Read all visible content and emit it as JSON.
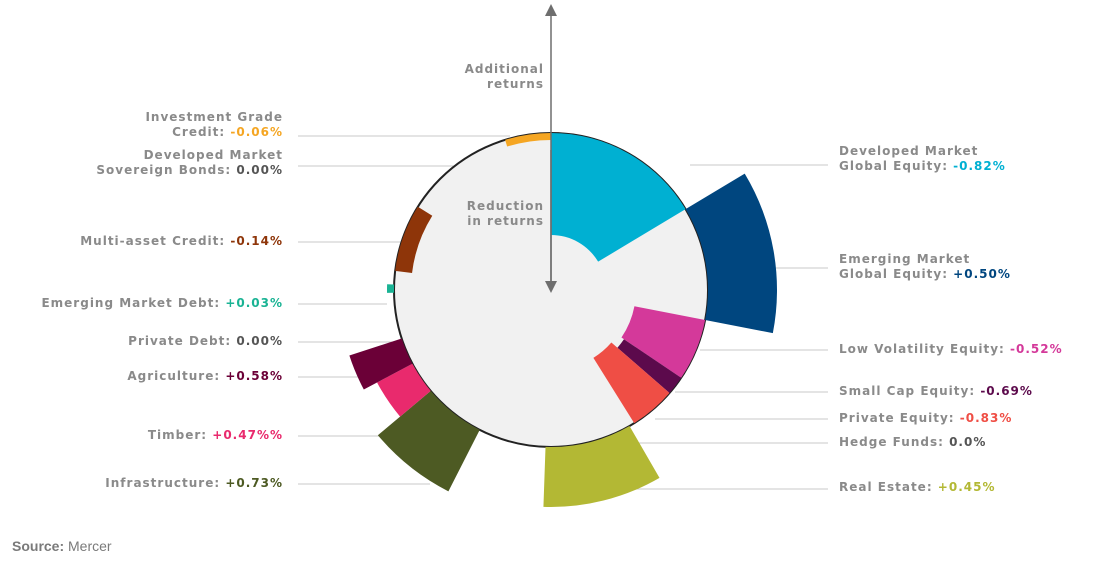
{
  "chart_data": {
    "type": "polar-area",
    "axis_up_label": [
      "Additional",
      "returns"
    ],
    "axis_down_label": [
      "Reduction",
      "in returns"
    ],
    "series": [
      {
        "name": "Developed Market Global Equity",
        "label_lines": [
          "Developed Market",
          "Global Equity: "
        ],
        "value_text": "-0.82%",
        "value": -0.82,
        "color": "#00b0d2",
        "side": "right"
      },
      {
        "name": "Emerging Market Global Equity",
        "label_lines": [
          "Emerging Market",
          "Global Equity: "
        ],
        "value_text": "+0.50%",
        "value": 0.5,
        "color": "#00467f",
        "side": "right"
      },
      {
        "name": "Low Volatility Equity",
        "label_lines": [
          "Low Volatility Equity: "
        ],
        "value_text": "-0.52%",
        "value": -0.52,
        "color": "#d4399a",
        "side": "right"
      },
      {
        "name": "Small Cap Equity",
        "label_lines": [
          "Small Cap Equity: "
        ],
        "value_text": "-0.69%",
        "value": -0.69,
        "color": "#5c0a4c",
        "side": "right"
      },
      {
        "name": "Private Equity",
        "label_lines": [
          "Private Equity: "
        ],
        "value_text": "-0.83%",
        "value": -0.83,
        "color": "#ef4e45",
        "side": "right"
      },
      {
        "name": "Hedge Funds",
        "label_lines": [
          "Hedge Funds:  "
        ],
        "value_text": "0.0%",
        "value": 0.0,
        "color": "#555555",
        "side": "right"
      },
      {
        "name": "Real Estate",
        "label_lines": [
          "Real Estate: "
        ],
        "value_text": "+0.45%",
        "value": 0.45,
        "color": "#b3b834",
        "side": "right"
      },
      {
        "name": "Infrastructure",
        "label_lines": [
          "Infrastructure: "
        ],
        "value_text": "+0.73%",
        "value": 0.73,
        "color": "#4d5a23",
        "side": "left"
      },
      {
        "name": "Timber",
        "label_lines": [
          "Timber: "
        ],
        "value_text": "+0.47%%",
        "value": 0.47,
        "color": "#e92a6d",
        "side": "left"
      },
      {
        "name": "Agriculture",
        "label_lines": [
          "Agriculture: "
        ],
        "value_text": "+0.58%",
        "value": 0.58,
        "color": "#6b0037",
        "side": "left"
      },
      {
        "name": "Private Debt",
        "label_lines": [
          "Private Debt: "
        ],
        "value_text": "0.00%",
        "value": 0.0,
        "color": "#555555",
        "side": "left"
      },
      {
        "name": "Emerging Market Debt",
        "label_lines": [
          "Emerging Market Debt: "
        ],
        "value_text": "+0.03%",
        "value": 0.03,
        "color": "#1ab394",
        "side": "left"
      },
      {
        "name": "Multi-asset Credit",
        "label_lines": [
          "Multi-asset Credit: "
        ],
        "value_text": "-0.14%",
        "value": -0.14,
        "color": "#8e3509",
        "side": "left"
      },
      {
        "name": "Developed Market Sovereign Bonds",
        "label_lines": [
          "Developed Market",
          "Sovereign Bonds: "
        ],
        "value_text": "0.00%",
        "value": 0.0,
        "color": "#555555",
        "side": "left"
      },
      {
        "name": "Investment Grade Credit",
        "label_lines": [
          "Investment Grade",
          "Credit: "
        ],
        "value_text": "-0.06%",
        "value": -0.06,
        "color": "#f5a623",
        "side": "left"
      }
    ]
  },
  "source": {
    "prefix": "Source:",
    "text": " Mercer"
  }
}
